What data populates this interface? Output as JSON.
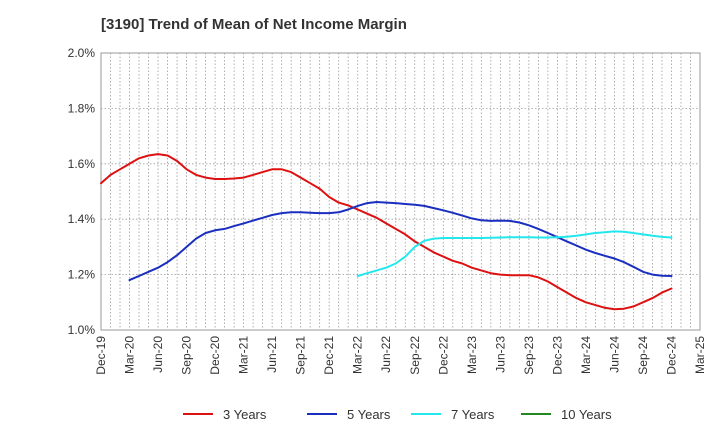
{
  "chart_data": {
    "type": "line",
    "title": "[3190]  Trend of Mean of Net Income Margin",
    "xlabel": "",
    "ylabel": "",
    "x_ticks": [
      "Dec-19",
      "Mar-20",
      "Jun-20",
      "Sep-20",
      "Dec-20",
      "Mar-21",
      "Jun-21",
      "Sep-21",
      "Dec-21",
      "Mar-22",
      "Jun-22",
      "Sep-22",
      "Dec-22",
      "Mar-23",
      "Jun-23",
      "Sep-23",
      "Dec-23",
      "Mar-24",
      "Jun-24",
      "Sep-24",
      "Dec-24",
      "Mar-25"
    ],
    "y_ticks": [
      "1.0%",
      "1.2%",
      "1.4%",
      "1.6%",
      "1.8%",
      "2.0%"
    ],
    "ylim": [
      1.0,
      2.0
    ],
    "grid": true,
    "legend_position": "bottom",
    "series": [
      {
        "name": "3 Years",
        "color": "#dd1111",
        "x": [
          "Dec-19",
          "Jan-20",
          "Feb-20",
          "Mar-20",
          "Apr-20",
          "May-20",
          "Jun-20",
          "Jul-20",
          "Aug-20",
          "Sep-20",
          "Oct-20",
          "Nov-20",
          "Dec-20",
          "Jan-21",
          "Feb-21",
          "Mar-21",
          "Apr-21",
          "May-21",
          "Jun-21",
          "Jul-21",
          "Aug-21",
          "Sep-21",
          "Oct-21",
          "Nov-21",
          "Dec-21",
          "Jan-22",
          "Feb-22",
          "Mar-22",
          "Apr-22",
          "May-22",
          "Jun-22",
          "Jul-22",
          "Aug-22",
          "Sep-22",
          "Oct-22",
          "Nov-22",
          "Dec-22",
          "Jan-23",
          "Feb-23",
          "Mar-23",
          "Apr-23",
          "May-23",
          "Jun-23",
          "Jul-23",
          "Aug-23",
          "Sep-23",
          "Oct-23",
          "Nov-23",
          "Dec-23",
          "Jan-24",
          "Feb-24",
          "Mar-24",
          "Apr-24",
          "May-24",
          "Jun-24",
          "Jul-24",
          "Aug-24",
          "Sep-24",
          "Oct-24",
          "Nov-24",
          "Dec-24"
        ],
        "values": [
          1.53,
          1.56,
          1.58,
          1.6,
          1.62,
          1.63,
          1.635,
          1.63,
          1.61,
          1.58,
          1.56,
          1.55,
          1.545,
          1.545,
          1.547,
          1.55,
          1.56,
          1.57,
          1.58,
          1.58,
          1.57,
          1.55,
          1.53,
          1.51,
          1.48,
          1.46,
          1.45,
          1.435,
          1.42,
          1.405,
          1.385,
          1.365,
          1.345,
          1.32,
          1.3,
          1.28,
          1.265,
          1.25,
          1.24,
          1.225,
          1.215,
          1.205,
          1.2,
          1.198,
          1.198,
          1.198,
          1.19,
          1.175,
          1.155,
          1.135,
          1.115,
          1.1,
          1.09,
          1.08,
          1.075,
          1.077,
          1.085,
          1.1,
          1.115,
          1.135,
          1.15
        ]
      },
      {
        "name": "5 Years",
        "color": "#1a2fc0",
        "x": [
          "Mar-20",
          "Apr-20",
          "May-20",
          "Jun-20",
          "Jul-20",
          "Aug-20",
          "Sep-20",
          "Oct-20",
          "Nov-20",
          "Dec-20",
          "Jan-21",
          "Feb-21",
          "Mar-21",
          "Apr-21",
          "May-21",
          "Jun-21",
          "Jul-21",
          "Aug-21",
          "Sep-21",
          "Oct-21",
          "Nov-21",
          "Dec-21",
          "Jan-22",
          "Feb-22",
          "Mar-22",
          "Apr-22",
          "May-22",
          "Jun-22",
          "Jul-22",
          "Aug-22",
          "Sep-22",
          "Oct-22",
          "Nov-22",
          "Dec-22",
          "Jan-23",
          "Feb-23",
          "Mar-23",
          "Apr-23",
          "May-23",
          "Jun-23",
          "Jul-23",
          "Aug-23",
          "Sep-23",
          "Oct-23",
          "Nov-23",
          "Dec-23",
          "Jan-24",
          "Feb-24",
          "Mar-24",
          "Apr-24",
          "May-24",
          "Jun-24",
          "Jul-24",
          "Aug-24",
          "Sep-24",
          "Oct-24",
          "Nov-24",
          "Dec-24"
        ],
        "values": [
          1.18,
          1.195,
          1.21,
          1.225,
          1.245,
          1.27,
          1.3,
          1.33,
          1.35,
          1.36,
          1.365,
          1.375,
          1.385,
          1.395,
          1.405,
          1.415,
          1.422,
          1.425,
          1.425,
          1.423,
          1.422,
          1.422,
          1.425,
          1.435,
          1.448,
          1.458,
          1.462,
          1.46,
          1.458,
          1.455,
          1.452,
          1.448,
          1.44,
          1.432,
          1.423,
          1.413,
          1.403,
          1.396,
          1.394,
          1.395,
          1.394,
          1.388,
          1.378,
          1.365,
          1.35,
          1.335,
          1.32,
          1.305,
          1.29,
          1.278,
          1.268,
          1.258,
          1.245,
          1.228,
          1.21,
          1.2,
          1.196,
          1.195
        ]
      },
      {
        "name": "7 Years",
        "color": "#22e8ee",
        "x": [
          "Mar-22",
          "Apr-22",
          "May-22",
          "Jun-22",
          "Jul-22",
          "Aug-22",
          "Sep-22",
          "Oct-22",
          "Nov-22",
          "Dec-22",
          "Jan-23",
          "Feb-23",
          "Mar-23",
          "Apr-23",
          "May-23",
          "Jun-23",
          "Jul-23",
          "Aug-23",
          "Sep-23",
          "Oct-23",
          "Nov-23",
          "Dec-23",
          "Jan-24",
          "Feb-24",
          "Mar-24",
          "Apr-24",
          "May-24",
          "Jun-24",
          "Jul-24",
          "Aug-24",
          "Sep-24",
          "Oct-24",
          "Nov-24",
          "Dec-24"
        ],
        "values": [
          1.195,
          1.205,
          1.215,
          1.225,
          1.24,
          1.265,
          1.3,
          1.322,
          1.33,
          1.332,
          1.332,
          1.332,
          1.332,
          1.332,
          1.333,
          1.334,
          1.335,
          1.335,
          1.335,
          1.334,
          1.334,
          1.335,
          1.337,
          1.34,
          1.345,
          1.35,
          1.353,
          1.356,
          1.355,
          1.35,
          1.345,
          1.34,
          1.336,
          1.334
        ]
      },
      {
        "name": "10 Years",
        "color": "#228822",
        "x": [],
        "values": []
      }
    ]
  }
}
